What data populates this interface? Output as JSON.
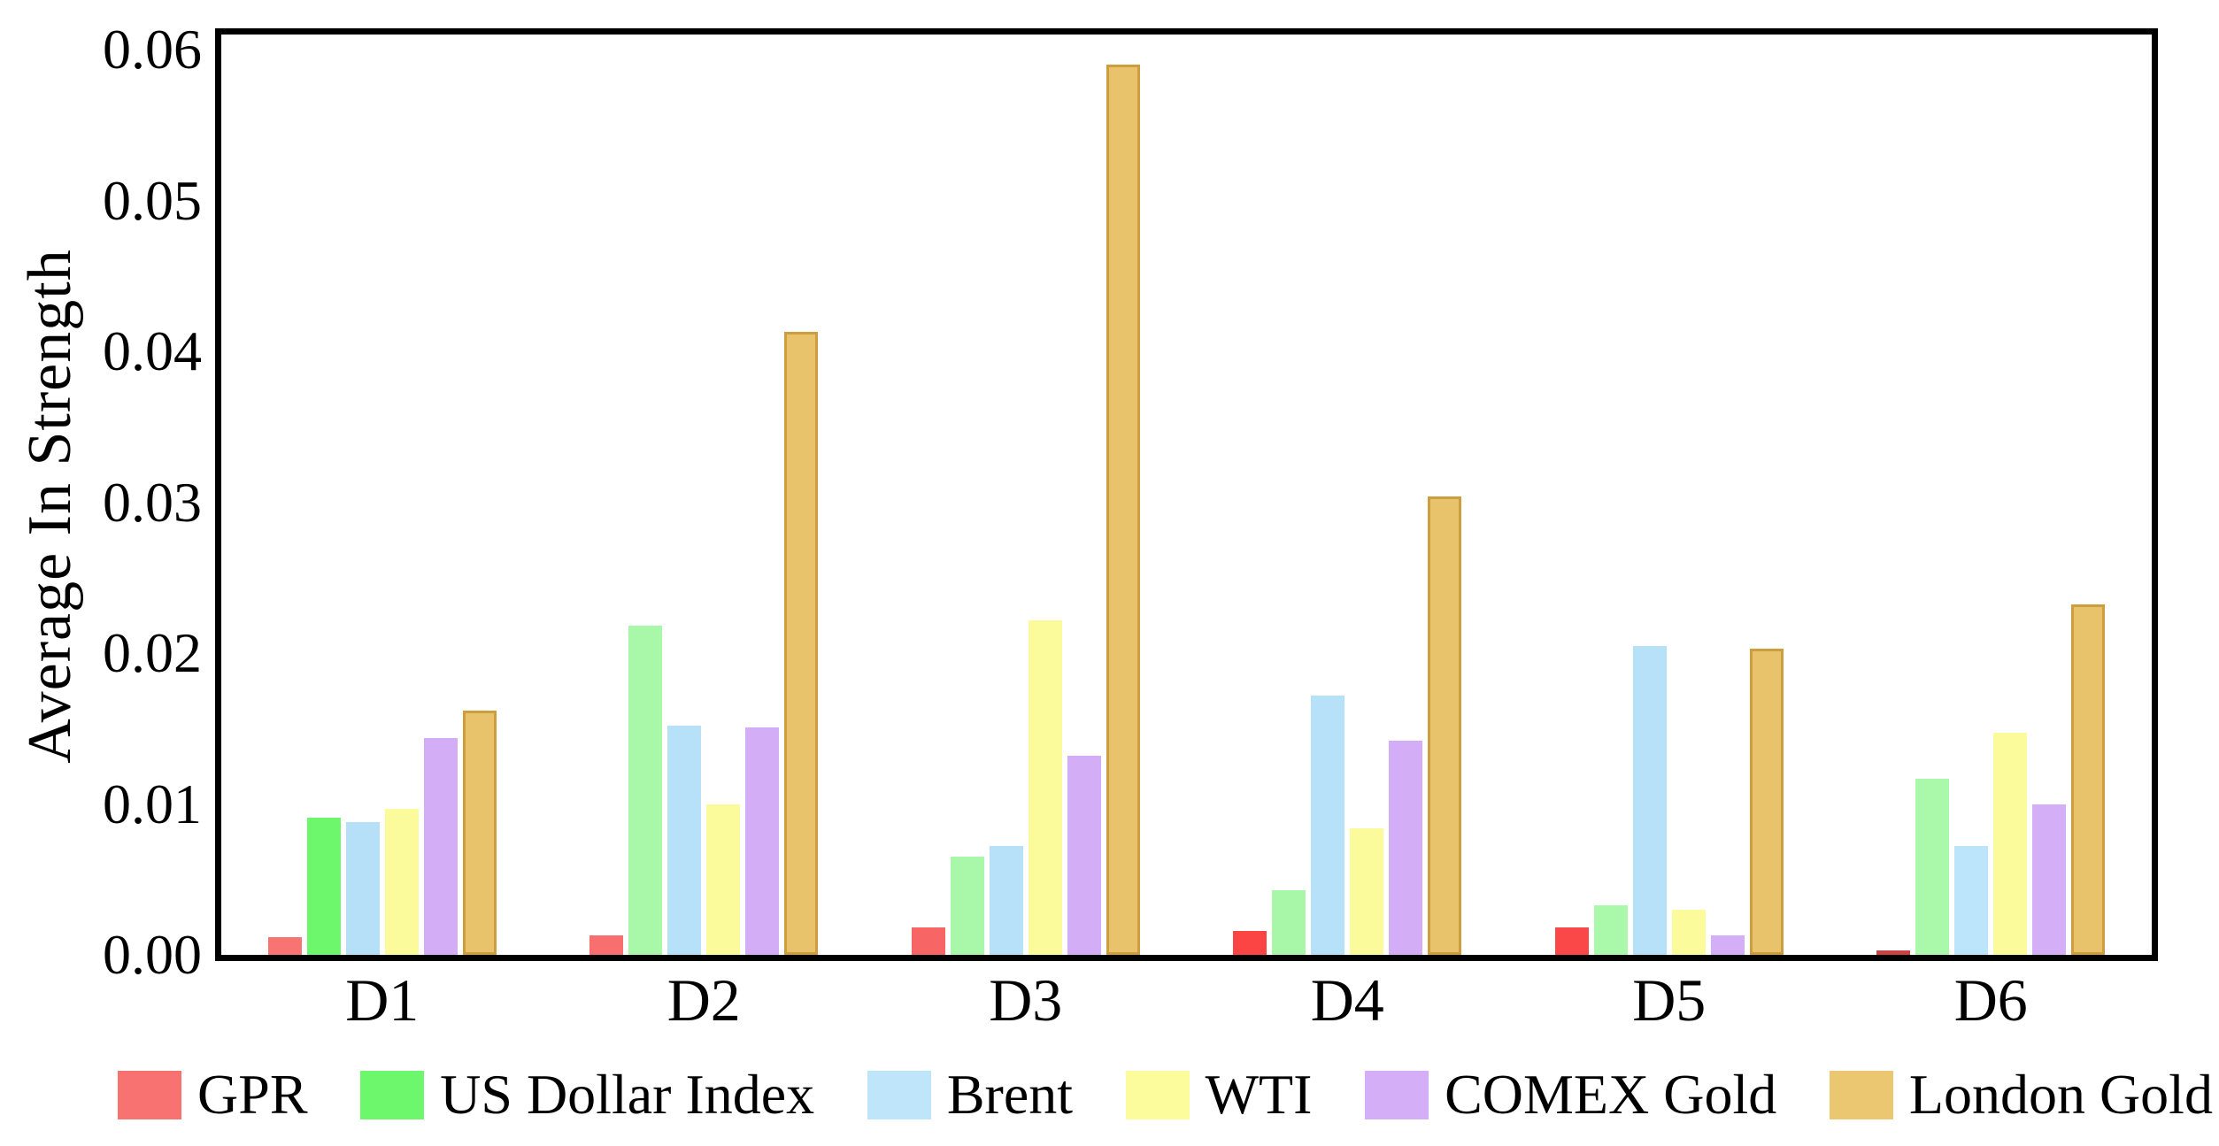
{
  "figure": {
    "background": "#ffffff",
    "frame_color": "#000000"
  },
  "chart_data": {
    "type": "bar",
    "title": "",
    "xlabel": "",
    "ylabel": "Average In Strength",
    "categories": [
      "D1",
      "D2",
      "D3",
      "D4",
      "D5",
      "D6"
    ],
    "series": [
      {
        "name": "GPR",
        "legend_color": "#F87272",
        "bar_colors": [
          "#F97373",
          "#F96E6E",
          "#F86565",
          "#FB4444",
          "#FA4747",
          "#CA4343"
        ],
        "values": [
          0.0012,
          0.0013,
          0.0018,
          0.0016,
          0.0018,
          0.0003
        ]
      },
      {
        "name": "US Dollar Index",
        "legend_color": "#6CF76C",
        "bar_colors": [
          "#6DF76D",
          "#A9F7A9",
          "#A9F7A9",
          "#A8F6A8",
          "#AAF8AA",
          "#AAF8AA"
        ],
        "values": [
          0.0091,
          0.0218,
          0.0065,
          0.0043,
          0.0033,
          0.0117
        ]
      },
      {
        "name": "Brent",
        "legend_color": "#BFE5FA",
        "bar_colors": [
          "#B6E0F7",
          "#B7E1F8",
          "#B7E1F8",
          "#B7E1F8",
          "#B7E1F8",
          "#BCE4FA"
        ],
        "values": [
          0.0088,
          0.0152,
          0.0072,
          0.0172,
          0.0205,
          0.0072
        ]
      },
      {
        "name": "WTI",
        "legend_color": "#FCFC9D",
        "bar_colors": [
          "#FBFB9C",
          "#FBFB9C",
          "#FBFB9C",
          "#FBFB9C",
          "#FBFB9C",
          "#FBFB9C"
        ],
        "values": [
          0.0097,
          0.01,
          0.0222,
          0.0084,
          0.003,
          0.0147
        ]
      },
      {
        "name": "COMEX Gold",
        "legend_color": "#D4AEF6",
        "bar_colors": [
          "#D3ADF5",
          "#D3ADF5",
          "#D3ADF5",
          "#D3ADF5",
          "#D4AEF6",
          "#D4AEF6"
        ],
        "values": [
          0.0144,
          0.0151,
          0.0132,
          0.0142,
          0.0013,
          0.01
        ]
      },
      {
        "name": "London Gold",
        "legend_color": "#ECC771",
        "bar_colors": [
          "#E9C36B",
          "#E9C36B",
          "#E9C36B",
          "#E9C36B",
          "#E9C36B",
          "#E9C36B"
        ],
        "edge_color": "#CE9D3E",
        "edge_width": 3,
        "values": [
          0.0162,
          0.0413,
          0.059,
          0.0304,
          0.0203,
          0.0232
        ]
      }
    ],
    "ylim": [
      0,
      0.061
    ],
    "yticks": [
      "0.00",
      "0.01",
      "0.02",
      "0.03",
      "0.04",
      "0.05",
      "0.06"
    ],
    "grid": false,
    "legend_position": "bottom"
  }
}
